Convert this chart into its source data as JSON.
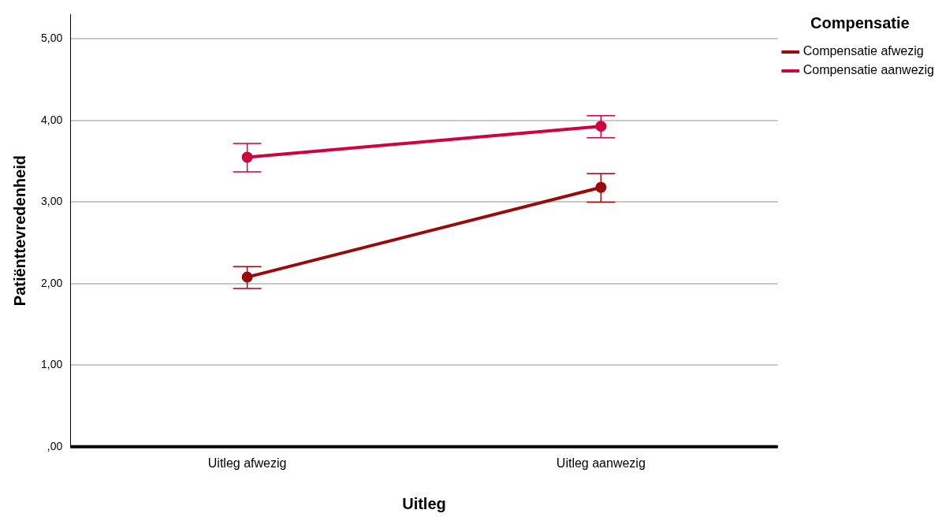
{
  "chart_data": {
    "type": "line",
    "xlabel": "Uitleg",
    "ylabel": "Patiënttevredenheid",
    "legend_title": "Compensatie",
    "categories": [
      "Uitleg afwezig",
      "Uitleg aanwezig"
    ],
    "series": [
      {
        "name": "Compensatie afwezig",
        "color": "#9b0a0a",
        "values": [
          2.08,
          3.18
        ],
        "errors": [
          [
            1.94,
            2.21
          ],
          [
            3.0,
            3.35
          ]
        ]
      },
      {
        "name": "Compensatie aanwezig",
        "color": "#d3003f",
        "values": [
          3.55,
          3.93
        ],
        "errors": [
          [
            3.37,
            3.72
          ],
          [
            3.79,
            4.06
          ]
        ]
      }
    ],
    "ylim": [
      0,
      5.3
    ],
    "yticks": [
      {
        "value": 0,
        "label": ",00"
      },
      {
        "value": 1,
        "label": "1,00"
      },
      {
        "value": 2,
        "label": "2,00"
      },
      {
        "value": 3,
        "label": "3,00"
      },
      {
        "value": 4,
        "label": "4,00"
      },
      {
        "value": 5,
        "label": "5,00"
      }
    ],
    "grid": "y",
    "legend": "top right",
    "marker": "circle",
    "line_style": "solid"
  }
}
